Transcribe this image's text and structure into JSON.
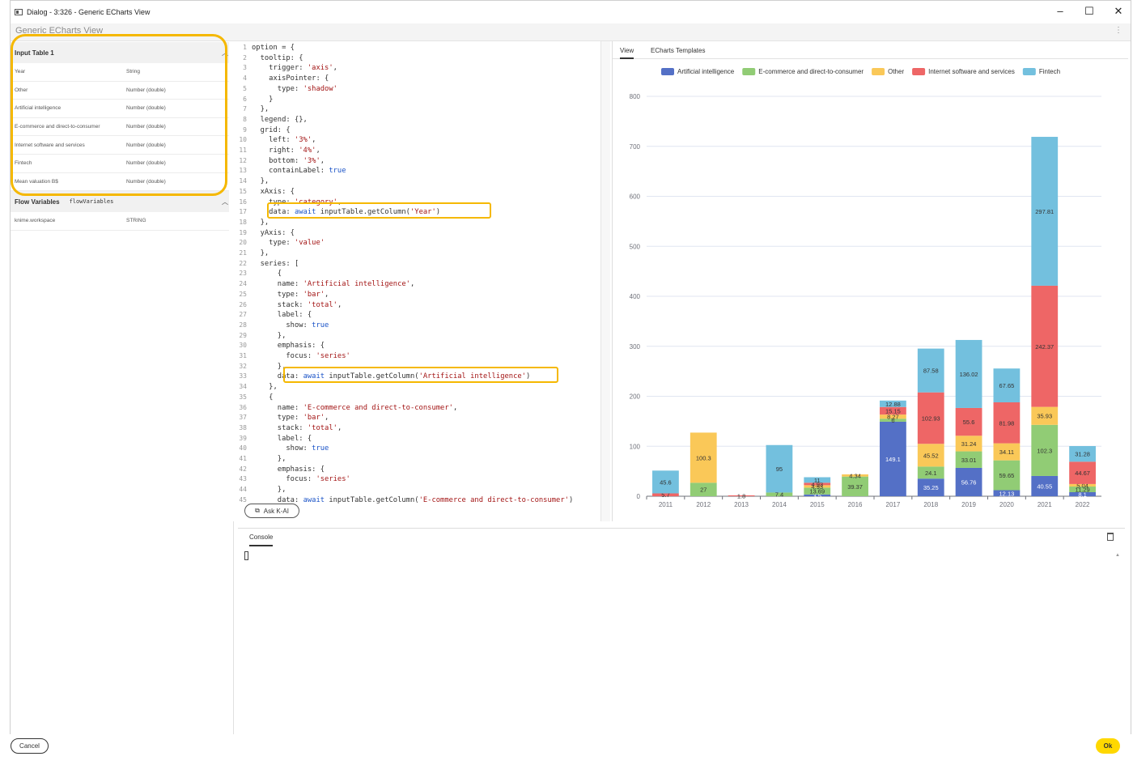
{
  "window": {
    "title": "Dialog - 3:326 - Generic ECharts View",
    "subtitle": "Generic ECharts View",
    "controls": [
      "–",
      "☐",
      "✕"
    ]
  },
  "left": {
    "input_table": {
      "title": "Input Table 1",
      "rows": [
        [
          "Year",
          "String"
        ],
        [
          "Other",
          "Number (double)"
        ],
        [
          "Artificial intelligence",
          "Number (double)"
        ],
        [
          "E-commerce and direct-to-consumer",
          "Number (double)"
        ],
        [
          "Internet software and services",
          "Number (double)"
        ],
        [
          "Fintech",
          "Number (double)"
        ],
        [
          "Mean valuation B$",
          "Number (double)"
        ]
      ]
    },
    "flow_vars": {
      "title": "Flow Variables",
      "sub": "flowVariables",
      "rows": [
        [
          "knime.workspace",
          "STRING"
        ]
      ]
    }
  },
  "editor": {
    "lines": [
      "option = {",
      "  tooltip: {",
      "    trigger: 'axis',",
      "    axisPointer: {",
      "      type: 'shadow'",
      "    }",
      "  },",
      "  legend: {},",
      "  grid: {",
      "    left: '3%',",
      "    right: '4%',",
      "    bottom: '3%',",
      "    containLabel: true",
      "  },",
      "  xAxis: {",
      "    type: 'category',",
      "    data: await inputTable.getColumn('Year')",
      "  },",
      "  yAxis: {",
      "    type: 'value'",
      "  },",
      "  series: [",
      "      {",
      "      name: 'Artificial intelligence',",
      "      type: 'bar',",
      "      stack: 'total',",
      "      label: {",
      "        show: true",
      "      },",
      "      emphasis: {",
      "        focus: 'series'",
      "      },",
      "      data: await inputTable.getColumn('Artificial intelligence')",
      "    },",
      "    {",
      "      name: 'E-commerce and direct-to-consumer',",
      "      type: 'bar',",
      "      stack: 'total',",
      "      label: {",
      "        show: true",
      "      },",
      "      emphasis: {",
      "        focus: 'series'",
      "      },",
      "      data: await inputTable.getColumn('E-commerce and direct-to-consumer')"
    ],
    "ask_label": "Ask K-AI"
  },
  "view": {
    "tabs": [
      "View",
      "ECharts Templates"
    ]
  },
  "console": {
    "tab": "Console"
  },
  "footer": {
    "cancel": "Cancel",
    "ok": "Ok"
  },
  "chart_data": {
    "type": "bar",
    "stacked": true,
    "categories": [
      "2011",
      "2012",
      "2013",
      "2014",
      "2015",
      "2016",
      "2017",
      "2018",
      "2019",
      "2020",
      "2021",
      "2022"
    ],
    "ylim": [
      0,
      800
    ],
    "yticks": [
      0,
      100,
      200,
      300,
      400,
      500,
      600,
      700,
      800
    ],
    "legend_position": "top-center",
    "grid": true,
    "series": [
      {
        "name": "Artificial intelligence",
        "color": "#5470c6",
        "values": [
          0,
          0,
          0,
          0,
          3.5,
          0,
          149.1,
          35.25,
          56.76,
          12.13,
          40.55,
          8.1
        ]
      },
      {
        "name": "E-commerce and direct-to-consumer",
        "color": "#91cc75",
        "values": [
          0,
          27,
          0,
          7.4,
          13.69,
          39.37,
          6,
          24.1,
          33.01,
          59.65,
          102.3,
          11.29
        ]
      },
      {
        "name": "Other",
        "color": "#fac858",
        "values": [
          0,
          100.3,
          0,
          0,
          4.93,
          4.34,
          8.27,
          45.52,
          31.24,
          34.11,
          35.93,
          5.04
        ]
      },
      {
        "name": "Internet software and services",
        "color": "#ee6666",
        "values": [
          5.7,
          0,
          1.8,
          0,
          4.93,
          0,
          15.15,
          102.93,
          55.6,
          81.98,
          242.37,
          44.67
        ]
      },
      {
        "name": "Fintech",
        "color": "#73c0de",
        "values": [
          45.6,
          0,
          0,
          95,
          11,
          0,
          12.88,
          87.58,
          136.02,
          67.65,
          297.81,
          31.28
        ]
      }
    ]
  }
}
